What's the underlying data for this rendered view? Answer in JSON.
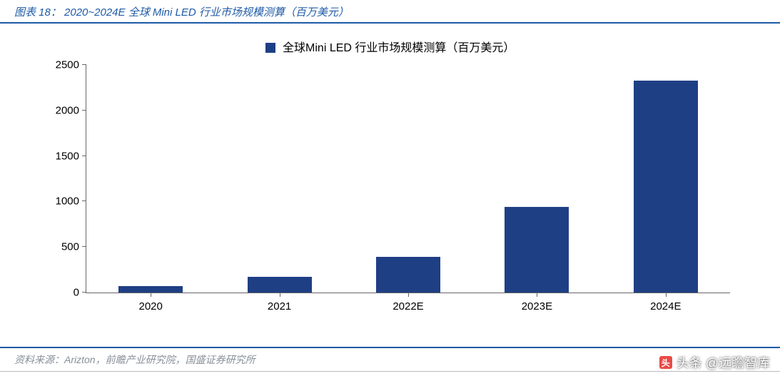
{
  "title": "图表 18： 2020~2024E 全球 Mini LED 行业市场规模测算（百万美元）",
  "legend_label": "全球Mini LED 行业市场规模测算（百万美元）",
  "source": "资料来源：Arizton，前瞻产业研究院，国盛证券研究所",
  "watermark": "头条 @远瞻智库",
  "chart": {
    "type": "bar",
    "categories": [
      "2020",
      "2021",
      "2022E",
      "2023E",
      "2024E"
    ],
    "values": [
      70,
      170,
      390,
      940,
      2330
    ],
    "bar_color": "#1f3f85",
    "title_color": "#1f5aa6",
    "rule_color": "#1f5aa6",
    "axis_color": "#666666",
    "background_color": "#ffffff",
    "source_color": "#889099",
    "ylim": [
      0,
      2500
    ],
    "ytick_step": 500,
    "yticks": [
      0,
      500,
      1000,
      1500,
      2000,
      2500
    ],
    "bar_width_ratio": 0.5,
    "tick_fontsize": 15,
    "legend_fontsize": 16,
    "title_fontsize": 15
  }
}
